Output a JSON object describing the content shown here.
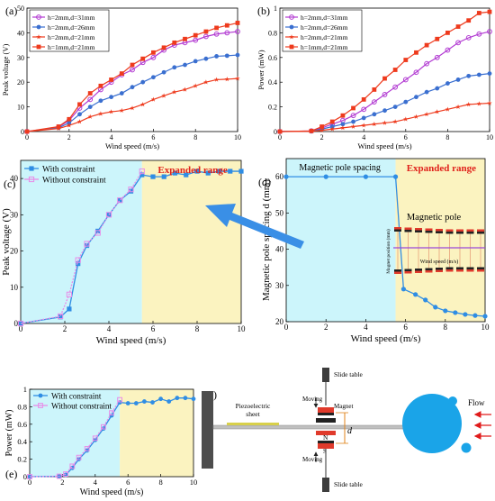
{
  "chart_data": [
    {
      "id": "a",
      "panel_label": "(a)",
      "type": "line",
      "xlabel": "Wind speed (m/s)",
      "ylabel": "Peak voltage (V)",
      "xlim": [
        0,
        10
      ],
      "ylim": [
        0,
        50
      ],
      "xticks": [
        "0",
        "2",
        "4",
        "6",
        "8",
        "10"
      ],
      "yticks": [
        "0",
        "10",
        "20",
        "30",
        "40",
        "50"
      ],
      "legend_position": "top-left",
      "x": [
        0,
        1.5,
        2.0,
        2.5,
        3.0,
        3.5,
        4.0,
        4.5,
        5.0,
        5.5,
        6.0,
        6.5,
        7.0,
        7.5,
        8.0,
        8.5,
        9.0,
        9.5,
        10.0
      ],
      "series": [
        {
          "name": "h=2mm,d=31mm",
          "color": "#b23bd2",
          "marker": "circle-open",
          "values": [
            0,
            1.8,
            4.5,
            9.5,
            13,
            17,
            20,
            23,
            25,
            28,
            30,
            33,
            35,
            36,
            37,
            38.5,
            39.5,
            40,
            40.5
          ]
        },
        {
          "name": "h=2mm,d=26mm",
          "color": "#3a6fd0",
          "marker": "circle",
          "values": [
            0,
            1.5,
            3.5,
            7,
            10,
            12.5,
            14,
            15.5,
            18,
            20,
            22,
            24,
            26,
            27,
            28.5,
            29.5,
            30.5,
            30.7,
            31
          ]
        },
        {
          "name": "h=2mm,d=21mm",
          "color": "#ee3a1d",
          "marker": "star",
          "values": [
            0,
            1.2,
            2.5,
            4,
            6,
            7.2,
            8,
            8.5,
            9.5,
            11,
            13,
            14.5,
            16,
            17,
            18.5,
            20,
            21,
            21.2,
            21.5
          ]
        },
        {
          "name": "h=1mm,d=21mm",
          "color": "#ee3a1d",
          "marker": "square",
          "values": [
            0,
            2,
            5,
            11,
            15.5,
            18.5,
            21,
            23.5,
            27,
            29.5,
            32,
            34,
            36,
            37.5,
            39,
            40.5,
            42,
            43,
            44
          ]
        }
      ]
    },
    {
      "id": "b",
      "panel_label": "(b)",
      "type": "line",
      "xlabel": "Wind speed (m/s)",
      "ylabel": "Power (mW)",
      "xlim": [
        0,
        10
      ],
      "ylim": [
        0,
        1
      ],
      "xticks": [
        "0",
        "2",
        "4",
        "6",
        "8",
        "10"
      ],
      "yticks": [
        "0",
        "0.2",
        "0.4",
        "0.6",
        "0.8",
        "1"
      ],
      "legend_position": "top-left",
      "x": [
        0,
        1.5,
        2.0,
        2.5,
        3.0,
        3.5,
        4.0,
        4.5,
        5.0,
        5.5,
        6.0,
        6.5,
        7.0,
        7.5,
        8.0,
        8.5,
        9.0,
        9.5,
        10.0
      ],
      "series": [
        {
          "name": "h=2mm,d=31mm",
          "color": "#b23bd2",
          "marker": "circle-open",
          "values": [
            0,
            0.005,
            0.03,
            0.06,
            0.09,
            0.13,
            0.18,
            0.24,
            0.3,
            0.36,
            0.42,
            0.48,
            0.55,
            0.6,
            0.66,
            0.72,
            0.76,
            0.79,
            0.81
          ]
        },
        {
          "name": "h=2mm,d=26mm",
          "color": "#3a6fd0",
          "marker": "circle",
          "values": [
            0,
            0.003,
            0.02,
            0.04,
            0.06,
            0.08,
            0.11,
            0.14,
            0.17,
            0.2,
            0.24,
            0.28,
            0.32,
            0.35,
            0.39,
            0.42,
            0.45,
            0.46,
            0.47
          ]
        },
        {
          "name": "h=2mm,d=21mm",
          "color": "#ee3a1d",
          "marker": "star",
          "values": [
            0,
            0.002,
            0.01,
            0.02,
            0.03,
            0.04,
            0.05,
            0.06,
            0.07,
            0.08,
            0.1,
            0.12,
            0.14,
            0.16,
            0.18,
            0.2,
            0.22,
            0.225,
            0.23
          ]
        },
        {
          "name": "h=1mm,d=21mm",
          "color": "#ee3a1d",
          "marker": "square",
          "values": [
            0,
            0.005,
            0.04,
            0.08,
            0.13,
            0.19,
            0.26,
            0.34,
            0.43,
            0.5,
            0.58,
            0.64,
            0.7,
            0.75,
            0.8,
            0.85,
            0.9,
            0.96,
            0.97
          ]
        }
      ]
    },
    {
      "id": "c",
      "panel_label": "(c)",
      "type": "line",
      "xlabel": "Wind speed (m/s)",
      "ylabel": "Peak voltage (V)",
      "xlim": [
        0,
        10
      ],
      "ylim": [
        0,
        45
      ],
      "xticks": [
        "0",
        "2",
        "4",
        "6",
        "8",
        "10"
      ],
      "yticks": [
        "0",
        "10",
        "20",
        "30",
        "40"
      ],
      "legend_position": "top-left",
      "region_split_x": 5.5,
      "annotation": "Expanded range",
      "series": [
        {
          "name": "With constraint",
          "color": "#2f8de4",
          "marker": "square",
          "x": [
            0,
            1.8,
            2.2,
            2.6,
            3.0,
            3.5,
            4.0,
            4.5,
            5.0,
            5.5,
            6.0,
            6.5,
            7.0,
            7.5,
            8.0,
            8.5,
            9.0,
            9.5,
            10.0
          ],
          "values": [
            0,
            1.8,
            4,
            16.5,
            21.5,
            25.5,
            30,
            34,
            36.5,
            41,
            40.5,
            40.5,
            41.5,
            41,
            42,
            41.5,
            42,
            42,
            42
          ]
        },
        {
          "name": "Without constraint",
          "color": "#e88ce8",
          "marker": "square-open",
          "x": [
            0,
            1.8,
            2.2,
            2.6,
            3.0,
            3.5,
            4.0,
            4.5,
            5.0,
            5.5
          ],
          "values": [
            0,
            2,
            8,
            17.5,
            22,
            25,
            30,
            34,
            37,
            42
          ]
        }
      ]
    },
    {
      "id": "d",
      "panel_label": "(d)",
      "type": "line",
      "xlabel": "Wind speed (m/s)",
      "ylabel": "Magnetic pole spacing d (mm)",
      "xlim": [
        0,
        10
      ],
      "ylim": [
        20,
        65
      ],
      "xticks": [
        "0",
        "2",
        "4",
        "6",
        "8",
        "10"
      ],
      "yticks": [
        "20",
        "30",
        "40",
        "50",
        "60"
      ],
      "region_split_x": 5.5,
      "annotation": "Expanded range",
      "left_label": "Magnetic pole spacing",
      "inset_title": "Magnetic pole",
      "inset_ylabel": "Magnet position (mm)",
      "inset_xlabel": "Wind speed (m/s)",
      "series": [
        {
          "name": "Magnetic pole spacing",
          "color": "#2f8de4",
          "marker": "circle",
          "x": [
            0,
            2,
            4,
            5.5,
            5.9,
            6.5,
            7,
            7.5,
            8,
            8.5,
            9,
            9.5,
            10
          ],
          "values": [
            60,
            60,
            60,
            60,
            29,
            27.5,
            26,
            24,
            23,
            22.5,
            22,
            21.7,
            21.5
          ]
        }
      ]
    },
    {
      "id": "e",
      "panel_label": "(e)",
      "type": "line",
      "xlabel": "Wind speed (m/s)",
      "ylabel": "Power (mW)",
      "xlim": [
        0,
        10
      ],
      "ylim": [
        0,
        1
      ],
      "xticks": [
        "0",
        "2",
        "4",
        "6",
        "8",
        "10"
      ],
      "yticks": [
        "0",
        "0.2",
        "0.4",
        "0.6",
        "0.8",
        "1"
      ],
      "legend_position": "top-left",
      "region_split_x": 5.5,
      "series": [
        {
          "name": "With constraint",
          "color": "#2f8de4",
          "marker": "circle",
          "x": [
            0,
            1.8,
            2.2,
            2.6,
            3.0,
            3.5,
            4.0,
            4.5,
            5.0,
            5.5,
            6.0,
            6.5,
            7.0,
            7.5,
            8.0,
            8.5,
            9.0,
            9.5,
            10.0
          ],
          "values": [
            0,
            0.005,
            0.02,
            0.1,
            0.2,
            0.3,
            0.42,
            0.55,
            0.7,
            0.85,
            0.84,
            0.84,
            0.86,
            0.85,
            0.89,
            0.86,
            0.9,
            0.9,
            0.89
          ]
        },
        {
          "name": "Without constraint",
          "color": "#e88ce8",
          "marker": "square-open",
          "x": [
            0,
            1.8,
            2.2,
            2.6,
            3.0,
            3.5,
            4.0,
            4.5,
            5.0,
            5.5
          ],
          "values": [
            0,
            0.005,
            0.03,
            0.12,
            0.22,
            0.32,
            0.44,
            0.57,
            0.73,
            0.88
          ]
        }
      ]
    }
  ],
  "schematic": {
    "panel_label": "(f)",
    "piezo_label": "Piezoelectric\nsheet",
    "slide_table_top": "Slide table",
    "slide_table_bottom": "Slide table",
    "moving_top": "Moving",
    "moving_bottom": "Moving",
    "magnet_label": "Magnet",
    "n_label": "N",
    "s_label": "S",
    "d_label": "d",
    "flow_label": "Flow",
    "colors": {
      "bluff_body": "#1aa4e8",
      "flow_arrow": "#e01b1b",
      "beam": "#c0c0c0",
      "clamp": "#4d4d4d",
      "d_marker": "#e0831b"
    }
  },
  "colors": {
    "cyan_region": "#ccf5fb",
    "yellow_region": "#fbf3c0",
    "annotation_red": "#e0221b",
    "big_arrow": "#3a8fe6"
  }
}
